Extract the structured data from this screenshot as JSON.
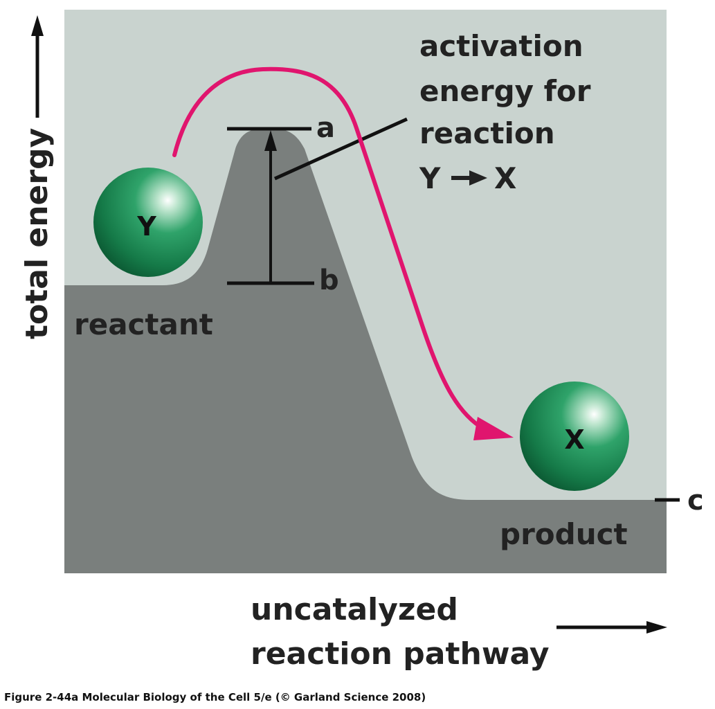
{
  "axes": {
    "y_label": "total energy",
    "x_label_line1": "uncatalyzed",
    "x_label_line2": "reaction pathway"
  },
  "molecules": {
    "reactant_symbol": "Y",
    "product_symbol": "X"
  },
  "states": {
    "reactant": "reactant",
    "product": "product"
  },
  "levels": {
    "a": "a",
    "b": "b",
    "c": "c"
  },
  "annotation": {
    "line1": "activation",
    "line2": "energy for",
    "line3": "reaction",
    "line4_from": "Y",
    "line4_to": "X"
  },
  "caption": "Figure 2-44a  Molecular Biology of the Cell 5/e (© Garland Science 2008)",
  "colors": {
    "background_panel": "#c9d3cf",
    "landscape": "#7a7f7d",
    "pathway_arrow": "#e0156e",
    "molecule": "#1f8a55"
  }
}
